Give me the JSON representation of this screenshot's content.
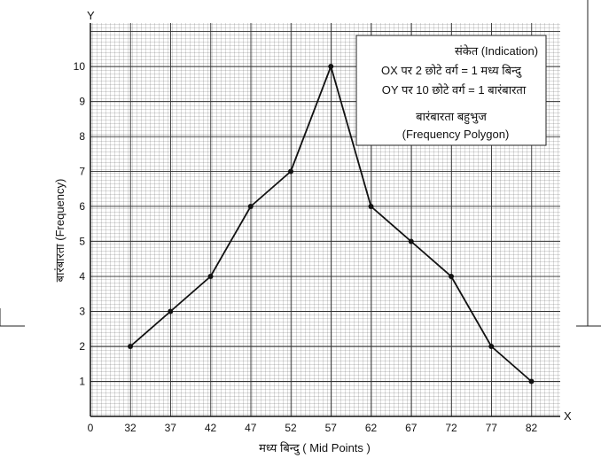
{
  "chart_data": {
    "type": "line",
    "x": [
      32,
      37,
      42,
      47,
      52,
      57,
      62,
      67,
      72,
      77,
      82
    ],
    "series": [
      {
        "values": [
          2,
          3,
          4,
          6,
          7,
          10,
          6,
          5,
          4,
          2,
          1
        ]
      }
    ],
    "x_ticks": [
      "0",
      "32",
      "37",
      "42",
      "47",
      "52",
      "57",
      "62",
      "67",
      "72",
      "77",
      "82"
    ],
    "y_ticks": [
      "1",
      "2",
      "3",
      "4",
      "5",
      "6",
      "7",
      "8",
      "9",
      "10"
    ],
    "xlabel": "मध्य बिन्दु ( Mid Points )",
    "ylabel": "बारंबारता (Frequency)",
    "x_axis_letter": "X",
    "y_axis_letter": "Y",
    "ylim": [
      0,
      10
    ],
    "grid": true,
    "legend": {
      "placement": "top-right",
      "lines": [
        "संकेत (Indication)",
        "OX पर 2 छोटे वर्ग = 1 मध्य बिन्दु",
        "OY पर 10 छोटे वर्ग = 1 बारंबारता",
        "बारंबारता बहुभुज",
        "(Frequency Polygon)"
      ]
    },
    "colors": {
      "line": "#111111",
      "grid": "#555555",
      "background": "#ffffff"
    }
  }
}
